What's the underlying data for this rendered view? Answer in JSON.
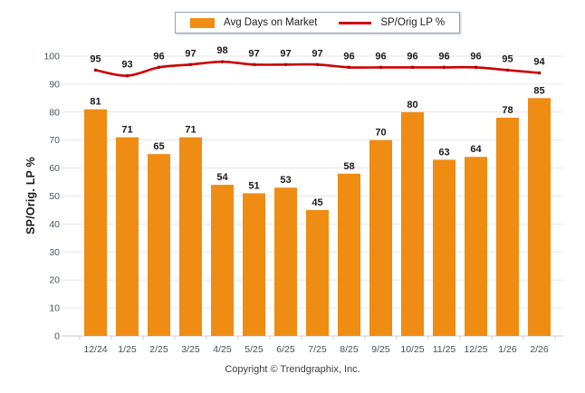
{
  "legend": {
    "bar_label": "Avg Days on Market",
    "line_label": "SP/Orig LP %"
  },
  "y_axis_title": "SP/Orig. LP %",
  "footer": {
    "copyright": "Copyright © Trendgraphix, Inc."
  },
  "colors": {
    "bar": "#EE8C14",
    "line": "#CC0000",
    "line_marker": "#B50000",
    "grid": "#E6E6E6",
    "axis": "#C9CDD1",
    "tick_label": "#44505A",
    "value_label": "#1A1A1A"
  },
  "chart_data": {
    "type": "bar+line",
    "categories": [
      "12/24",
      "1/25",
      "2/25",
      "3/25",
      "4/25",
      "5/25",
      "6/25",
      "7/25",
      "8/25",
      "9/25",
      "10/25",
      "11/25",
      "12/25",
      "1/26",
      "2/26"
    ],
    "series": [
      {
        "name": "Avg Days on Market",
        "type": "bar",
        "values": [
          81,
          71,
          65,
          71,
          54,
          51,
          53,
          45,
          58,
          70,
          80,
          63,
          64,
          78,
          85
        ]
      },
      {
        "name": "SP/Orig LP %",
        "type": "line",
        "values": [
          95,
          93,
          96,
          97,
          98,
          97,
          97,
          97,
          96,
          96,
          96,
          96,
          96,
          95,
          94
        ]
      }
    ],
    "title": "",
    "xlabel": "",
    "ylabel": "SP/Orig. LP %",
    "ylim": [
      0,
      100
    ],
    "yticks": [
      0,
      10,
      20,
      30,
      40,
      50,
      60,
      70,
      80,
      90,
      100
    ],
    "grid": true,
    "legend_position": "top",
    "data_labels": true
  }
}
